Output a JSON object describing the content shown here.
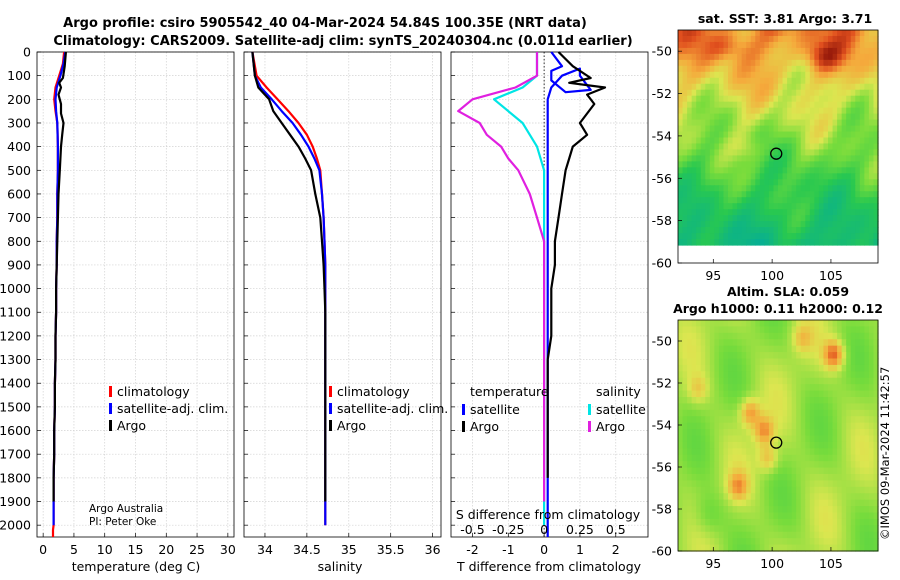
{
  "title_line1": "Argo profile: csiro 5905542_40 04-Mar-2024 54.84S 100.35E (NRT data)",
  "title_line2": "Climatology: CARS2009. Satellite-adj clim: synTS_20240304.nc (0.011d earlier)",
  "credit": {
    "line1": "Argo Australia",
    "line2": "PI: Peter Oke"
  },
  "stamp": "©IMOS 09-Mar-2024 11:42:57",
  "colors": {
    "climatology": "#ff0000",
    "satellite_adj": "#0000ff",
    "argo": "#000000",
    "sat_T": "#00e5e5",
    "sat_S": "#e020e0"
  },
  "chart_data": [
    {
      "type": "line",
      "id": "temperature",
      "xlabel": "temperature (deg C)",
      "ylabel": "depth",
      "xlim": [
        -1,
        31
      ],
      "ylim": [
        2050,
        0
      ],
      "xticks": [
        0,
        5,
        10,
        15,
        20,
        25,
        30
      ],
      "xtick_labels": [
        "0",
        "5",
        "10",
        "15",
        "20",
        "25",
        "30"
      ],
      "yticks": [
        0,
        100,
        200,
        300,
        400,
        500,
        600,
        700,
        800,
        900,
        1000,
        1100,
        1200,
        1300,
        1400,
        1500,
        1600,
        1700,
        1800,
        1900,
        2000
      ],
      "ytick_labels": [
        "0",
        "100",
        "200",
        "300",
        "400",
        "500",
        "600",
        "700",
        "800",
        "900",
        "1000",
        "1100",
        "1200",
        "1300",
        "1400",
        "1500",
        "1600",
        "1700",
        "1800",
        "1900",
        "2000"
      ],
      "legend": [
        "climatology",
        "satellite-adj. clim.",
        "Argo"
      ],
      "series": [
        {
          "name": "climatology",
          "color": "#ff0000",
          "x": [
            3.4,
            3.2,
            2.6,
            2.0,
            1.8,
            2.0,
            2.3,
            2.4,
            2.4,
            2.3,
            2.3,
            2.2,
            2.2,
            2.1,
            2.1,
            2.0,
            2.0,
            1.9,
            1.9,
            1.8,
            1.8,
            1.7,
            1.7,
            1.7,
            1.6,
            1.6,
            1.6,
            1.6
          ],
          "y": [
            0,
            50,
            100,
            150,
            200,
            250,
            300,
            400,
            500,
            600,
            700,
            800,
            900,
            1000,
            1100,
            1200,
            1300,
            1400,
            1500,
            1600,
            1700,
            1800,
            1900,
            2000,
            2020,
            2035,
            2045,
            2050
          ]
        },
        {
          "name": "satellite-adj. clim.",
          "color": "#0000ff",
          "x": [
            3.6,
            3.3,
            2.8,
            2.2,
            2.0,
            2.1,
            2.3,
            2.4,
            2.4,
            2.3,
            2.3,
            2.2,
            2.2,
            2.1,
            2.1,
            2.0,
            2.0,
            1.9,
            1.9,
            1.8,
            1.8,
            1.7,
            1.7,
            1.7,
            1.7
          ],
          "y": [
            0,
            50,
            100,
            150,
            200,
            250,
            300,
            400,
            500,
            600,
            700,
            800,
            900,
            1000,
            1100,
            1200,
            1300,
            1400,
            1500,
            1600,
            1700,
            1800,
            1900,
            1950,
            2000
          ]
        },
        {
          "name": "Argo",
          "color": "#000000",
          "x": [
            3.7,
            3.5,
            3.2,
            2.6,
            2.9,
            2.5,
            2.9,
            2.9,
            3.3,
            3.1,
            2.9,
            2.8,
            2.7,
            2.5,
            2.4,
            2.3,
            2.2,
            2.1,
            2.1,
            2.0,
            2.0,
            1.9,
            1.9,
            1.8,
            1.8,
            1.7,
            1.7
          ],
          "y": [
            0,
            60,
            110,
            130,
            150,
            180,
            220,
            260,
            300,
            350,
            400,
            450,
            500,
            600,
            700,
            800,
            900,
            1000,
            1100,
            1200,
            1300,
            1400,
            1500,
            1600,
            1700,
            1800,
            1900
          ]
        }
      ]
    },
    {
      "type": "line",
      "id": "salinity",
      "xlabel": "salinity",
      "ylabel": "depth",
      "xlim": [
        33.75,
        36.1
      ],
      "ylim": [
        2050,
        0
      ],
      "xticks": [
        34,
        34.5,
        35,
        35.5,
        36
      ],
      "xtick_labels": [
        "34",
        "34.5",
        "35",
        "35.5",
        "36"
      ],
      "legend": [
        "climatology",
        "satellite-adj. clim.",
        "Argo"
      ],
      "series": [
        {
          "name": "climatology",
          "color": "#ff0000",
          "x": [
            33.85,
            33.9,
            34.02,
            34.15,
            34.28,
            34.4,
            34.5,
            34.57,
            34.62,
            34.66,
            34.68,
            34.7,
            34.71,
            34.72,
            34.72,
            34.72,
            34.72,
            34.72,
            34.72,
            34.72,
            34.72,
            34.72,
            34.72,
            34.72,
            34.72
          ],
          "y": [
            0,
            100,
            150,
            200,
            250,
            300,
            350,
            400,
            450,
            500,
            600,
            700,
            800,
            900,
            1000,
            1100,
            1200,
            1300,
            1400,
            1500,
            1600,
            1700,
            1800,
            1900,
            2000
          ]
        },
        {
          "name": "satellite-adj. clim.",
          "color": "#0000ff",
          "x": [
            33.85,
            33.88,
            33.95,
            34.08,
            34.2,
            34.33,
            34.43,
            34.52,
            34.59,
            34.65,
            34.68,
            34.7,
            34.71,
            34.72,
            34.72,
            34.72,
            34.72,
            34.72,
            34.72,
            34.72,
            34.72,
            34.72,
            34.72,
            34.72,
            34.72
          ],
          "y": [
            0,
            100,
            150,
            200,
            250,
            300,
            350,
            400,
            450,
            500,
            600,
            700,
            800,
            900,
            1000,
            1100,
            1200,
            1300,
            1400,
            1500,
            1600,
            1700,
            1800,
            1900,
            2000
          ]
        },
        {
          "name": "Argo",
          "color": "#000000",
          "x": [
            33.85,
            33.88,
            33.92,
            34.05,
            34.1,
            34.2,
            34.3,
            34.4,
            34.48,
            34.55,
            34.6,
            34.66,
            34.68,
            34.7,
            34.71,
            34.72,
            34.72,
            34.72,
            34.72,
            34.72,
            34.72,
            34.72,
            34.72,
            34.72
          ],
          "y": [
            0,
            100,
            150,
            200,
            250,
            300,
            350,
            400,
            450,
            500,
            600,
            700,
            800,
            900,
            1000,
            1100,
            1200,
            1300,
            1400,
            1500,
            1600,
            1700,
            1800,
            1900
          ]
        }
      ]
    },
    {
      "type": "line",
      "id": "differences",
      "xlabel": "T difference from climatology",
      "xlabel_top": "S difference from climatology",
      "xlim": [
        -2.6,
        2.9
      ],
      "ylim": [
        2050,
        0
      ],
      "xticks": [
        -2,
        -1,
        0,
        1,
        2
      ],
      "xtick_labels": [
        "-2",
        "-1",
        "0",
        "1",
        "2"
      ],
      "s_ticks": [
        -0.5,
        -0.25,
        0,
        0.25,
        0.5
      ],
      "s_tick_labels": [
        "-0.5",
        "-0.25",
        "0",
        "0.25",
        "0.5"
      ],
      "legend_temperature": {
        "title": "temperature",
        "items": [
          "satellite",
          "Argo"
        ]
      },
      "legend_salinity": {
        "title": "salinity",
        "items": [
          "satellite",
          "Argo"
        ]
      },
      "series": [
        {
          "name": "temperature satellite",
          "color": "#0000ff",
          "x": [
            0.2,
            0.5,
            0.2,
            0.2,
            0.6,
            1.3,
            1.0,
            1.0,
            0.5,
            0.2,
            0.1,
            0.1,
            0.1,
            0.1,
            0.1,
            0.1,
            0.1,
            0.1,
            0.1,
            0.1,
            0.1,
            0.1,
            0.1,
            0.1,
            0.1,
            0.1
          ],
          "y": [
            0,
            60,
            80,
            120,
            170,
            160,
            100,
            70,
            100,
            150,
            200,
            300,
            400,
            500,
            700,
            900,
            1100,
            1300,
            1500,
            1700,
            1900,
            1950,
            2000,
            2020,
            2040,
            2050
          ]
        },
        {
          "name": "temperature Argo",
          "color": "#000000",
          "x": [
            0.4,
            0.8,
            1.3,
            0.7,
            1.7,
            1.2,
            1.4,
            1.2,
            1.0,
            1.2,
            0.8,
            0.7,
            0.6,
            0.5,
            0.4,
            0.3,
            0.3,
            0.2,
            0.2,
            0.2,
            0.1,
            0.1,
            0.1,
            0.1,
            0.1,
            0.1
          ],
          "y": [
            0,
            60,
            110,
            130,
            150,
            180,
            220,
            260,
            300,
            350,
            400,
            450,
            500,
            600,
            700,
            800,
            900,
            1000,
            1100,
            1200,
            1300,
            1400,
            1500,
            1600,
            1700,
            1800
          ]
        },
        {
          "name": "salinity satellite",
          "color": "#00e5e5",
          "x": [
            -0.05,
            -0.05,
            -0.15,
            -0.35,
            -0.15,
            -0.05,
            0.0,
            0.0,
            0.0,
            0.0,
            0.0,
            0.0,
            0.0,
            0.0,
            0.0,
            0.0
          ],
          "y": [
            0,
            100,
            150,
            200,
            300,
            400,
            500,
            700,
            900,
            1100,
            1300,
            1500,
            1700,
            1900,
            1950,
            2000
          ]
        },
        {
          "name": "salinity Argo",
          "color": "#e020e0",
          "x": [
            -0.05,
            -0.05,
            -0.2,
            -0.5,
            -0.6,
            -0.45,
            -0.4,
            -0.3,
            -0.25,
            -0.18,
            -0.1,
            -0.05,
            0.0,
            0.0,
            0.0,
            0.0,
            0.0,
            0.0,
            0.0
          ],
          "y": [
            0,
            100,
            150,
            200,
            250,
            300,
            350,
            400,
            450,
            500,
            600,
            700,
            800,
            900,
            1100,
            1300,
            1500,
            1700,
            1900
          ]
        }
      ]
    },
    {
      "type": "heatmap",
      "id": "sst_map",
      "title": "sat. SST: 3.81 Argo: 3.71",
      "xlim": [
        92,
        109
      ],
      "ylim": [
        -60,
        -49
      ],
      "xticks": [
        95,
        100,
        105
      ],
      "xtick_labels": [
        "95",
        "100",
        "105"
      ],
      "yticks": [
        -50,
        -52,
        -54,
        -56,
        -58,
        -60
      ],
      "ytick_labels": [
        "-50",
        "-52",
        "-54",
        "-56",
        "-58",
        "-60"
      ],
      "marker": {
        "lon": 100.35,
        "lat": -54.84
      }
    },
    {
      "type": "heatmap",
      "id": "sla_map",
      "title_line1": "Altim. SLA: 0.059",
      "title_line2": "Argo h1000: 0.11 h2000: 0.12",
      "xlim": [
        92,
        109
      ],
      "ylim": [
        -60,
        -49
      ],
      "xticks": [
        95,
        100,
        105
      ],
      "xtick_labels": [
        "95",
        "100",
        "105"
      ],
      "yticks": [
        -50,
        -52,
        -54,
        -56,
        -58,
        -60
      ],
      "ytick_labels": [
        "-50",
        "-52",
        "-54",
        "-56",
        "-58",
        "-60"
      ],
      "marker": {
        "lon": 100.35,
        "lat": -54.84
      }
    }
  ]
}
